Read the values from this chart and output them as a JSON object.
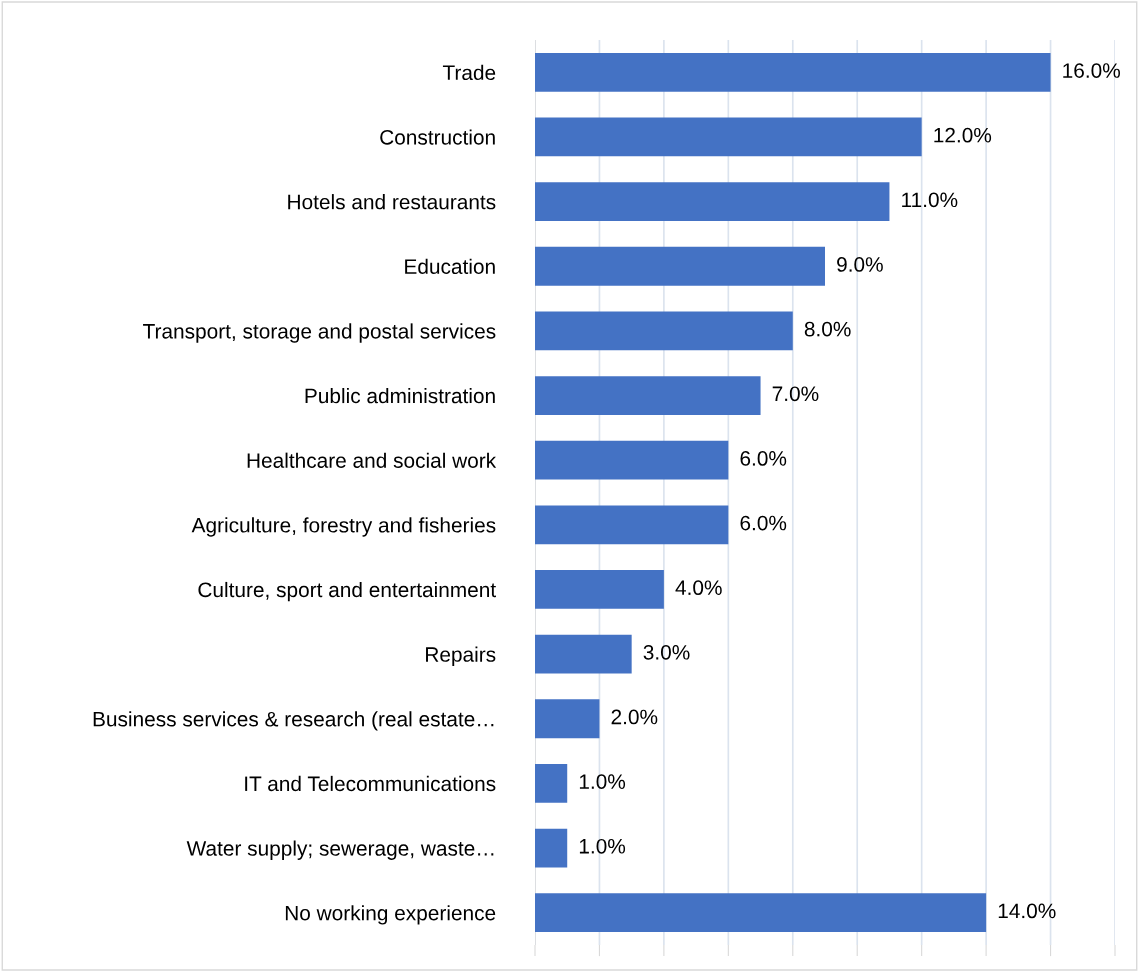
{
  "chart_data": {
    "type": "bar",
    "orientation": "horizontal",
    "categories": [
      "Trade",
      "Construction",
      "Hotels and restaurants",
      "Education",
      "Transport, storage and postal services",
      "Public administration",
      "Healthcare and social work",
      "Agriculture, forestry and fisheries",
      "Culture, sport and entertainment",
      "Repairs",
      "Business services & research (real estate…",
      "IT and Telecommunications",
      "Water supply; sewerage, waste…",
      "No working experience"
    ],
    "values": [
      16,
      12,
      11,
      9,
      8,
      7,
      6,
      6,
      4,
      3,
      2,
      1,
      1,
      14
    ],
    "value_labels": [
      "16.0%",
      "12.0%",
      "11.0%",
      "9.0%",
      "8.0%",
      "7.0%",
      "6.0%",
      "6.0%",
      "4.0%",
      "3.0%",
      "2.0%",
      "1.0%",
      "1.0%",
      "14.0%"
    ],
    "color": "#4472c4",
    "xlim": [
      0,
      18
    ],
    "xticks": [
      {
        "value": 0,
        "label": null
      },
      {
        "value": 2,
        "label": null
      },
      {
        "value": 4,
        "label": null
      },
      {
        "value": 6,
        "label": null
      },
      {
        "value": 8,
        "label": null
      },
      {
        "value": 10,
        "label": null
      },
      {
        "value": 12,
        "label": null
      },
      {
        "value": 14,
        "label": null
      },
      {
        "value": 16,
        "label": null
      },
      {
        "value": 18,
        "label": null
      }
    ],
    "grid": "x",
    "tick_labels": "y",
    "legend": false
  }
}
